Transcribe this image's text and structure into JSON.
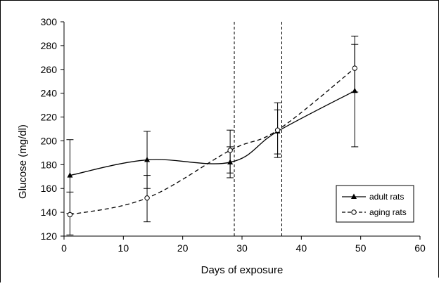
{
  "chart_data": {
    "type": "line",
    "xlabel": "Days of exposure",
    "ylabel": "Glucose (mg/dl)",
    "xlim": [
      0,
      60
    ],
    "ylim": [
      120,
      300
    ],
    "x_ticks": [
      0,
      10,
      20,
      30,
      40,
      50,
      60
    ],
    "y_ticks": [
      120,
      140,
      160,
      180,
      200,
      220,
      240,
      260,
      280,
      300
    ],
    "grid": false,
    "legend_position": "right",
    "vertical_reference_lines": [
      28.7,
      36.7
    ],
    "series": [
      {
        "name": "adult rats",
        "marker": "filled-triangle",
        "line_style": "solid",
        "x": [
          1,
          14,
          28,
          36,
          49
        ],
        "y": [
          171,
          184,
          182,
          208,
          242
        ],
        "error_low": [
          139,
          160,
          173,
          189,
          195
        ],
        "error_high": [
          201,
          208,
          209,
          226,
          281
        ]
      },
      {
        "name": "aging rats",
        "marker": "open-circle",
        "line_style": "dashed",
        "x": [
          1,
          14,
          28,
          36,
          49
        ],
        "y": [
          138,
          152,
          192,
          209,
          261
        ],
        "error_low": [
          121,
          132,
          169,
          186,
          241
        ],
        "error_high": [
          157,
          171,
          195,
          232,
          288
        ]
      }
    ]
  }
}
